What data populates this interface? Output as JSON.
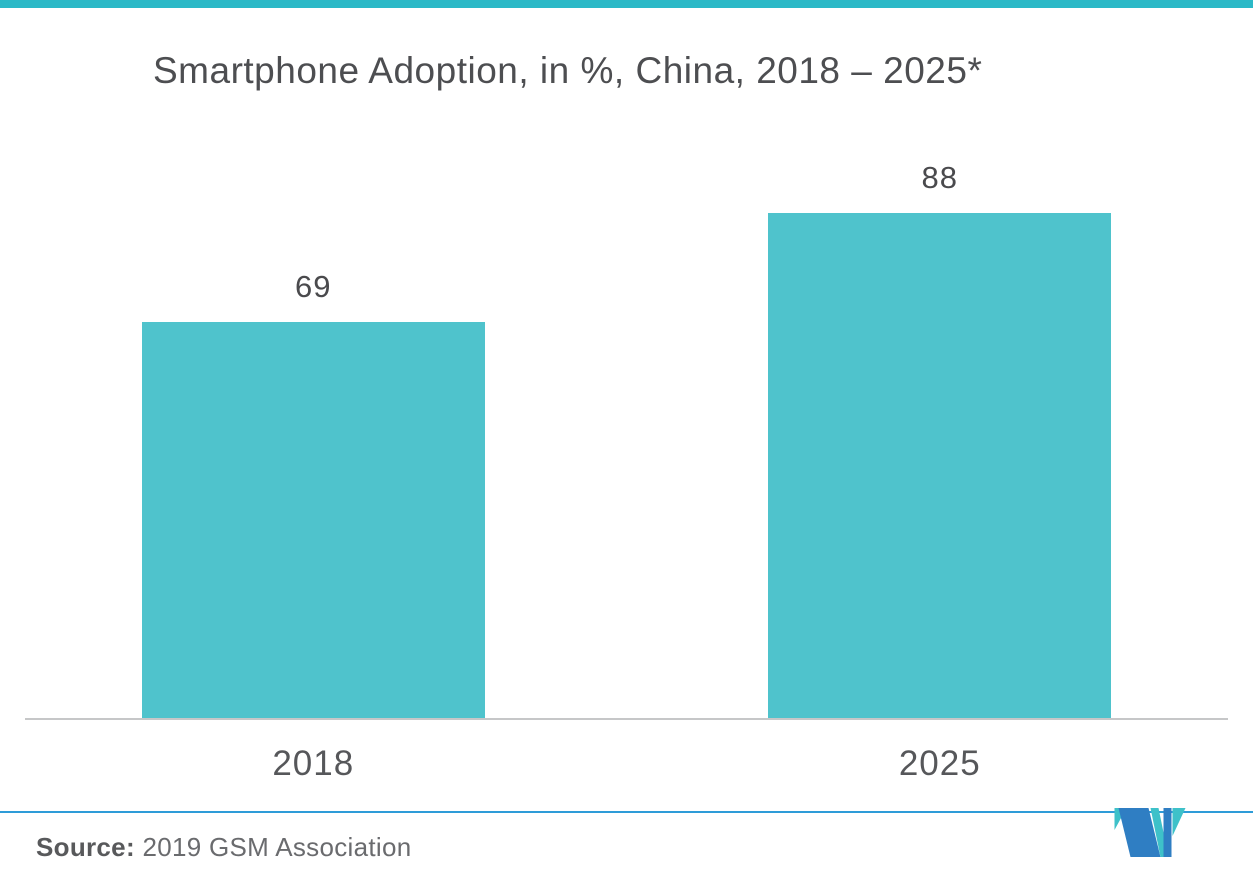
{
  "page": {
    "background": "#FFFFFF",
    "top_accent_color": "#2BB9C7",
    "divider_color": "#2E9CD8"
  },
  "chart_data": {
    "type": "bar",
    "title": "Smartphone Adoption, in %, China, 2018 – 2025*",
    "categories": [
      "2018",
      "2025"
    ],
    "values": [
      69,
      88
    ],
    "xlabel": "",
    "ylabel": "",
    "ylim": [
      0,
      100
    ],
    "grid": false,
    "legend": false,
    "bar_color": "#4FC3CC",
    "title_color": "#4D4E51",
    "value_label_color": "#4A4A4D",
    "tick_label_color": "#56575A",
    "axis_line_color": "#C6C7C8"
  },
  "footer": {
    "source_label": "Source:",
    "source_text": "2019 GSM Association"
  },
  "branding": {
    "logo": "mordor-intelligence-logo",
    "logo_teal": "#3EC1C9",
    "logo_blue": "#2F7EC3"
  }
}
